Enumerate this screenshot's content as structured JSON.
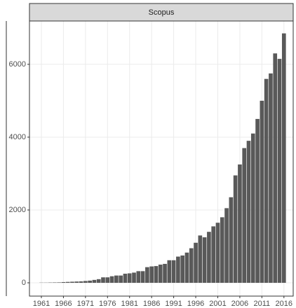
{
  "chart_data": {
    "type": "bar",
    "title": "Scopus",
    "x": [
      1961,
      1962,
      1963,
      1964,
      1965,
      1966,
      1967,
      1968,
      1969,
      1970,
      1971,
      1972,
      1973,
      1974,
      1975,
      1976,
      1977,
      1978,
      1979,
      1980,
      1981,
      1982,
      1983,
      1984,
      1985,
      1986,
      1987,
      1988,
      1989,
      1990,
      1991,
      1992,
      1993,
      1994,
      1995,
      1996,
      1997,
      1998,
      1999,
      2000,
      2001,
      2002,
      2003,
      2004,
      2005,
      2006,
      2007,
      2008,
      2009,
      2010,
      2011,
      2012,
      2013,
      2014,
      2015,
      2016
    ],
    "values": [
      5,
      5,
      8,
      10,
      12,
      20,
      25,
      30,
      35,
      40,
      50,
      60,
      80,
      100,
      150,
      150,
      180,
      200,
      200,
      250,
      260,
      280,
      320,
      320,
      430,
      450,
      460,
      500,
      520,
      620,
      620,
      720,
      750,
      830,
      950,
      1100,
      1300,
      1250,
      1400,
      1550,
      1650,
      1800,
      2050,
      2350,
      2950,
      3250,
      3700,
      3900,
      4100,
      4500,
      5000,
      5600,
      5750,
      6300,
      6150,
      6850
    ],
    "color": "#595959",
    "xlim": [
      1958.3,
      2018.1
    ],
    "xticks": [
      1961,
      1966,
      1971,
      1976,
      1981,
      1986,
      1991,
      1996,
      2001,
      2006,
      2011,
      2016
    ],
    "ylim": [
      -365,
      7190
    ],
    "yticks": [
      0,
      2000,
      4000,
      6000
    ],
    "grid": true
  }
}
